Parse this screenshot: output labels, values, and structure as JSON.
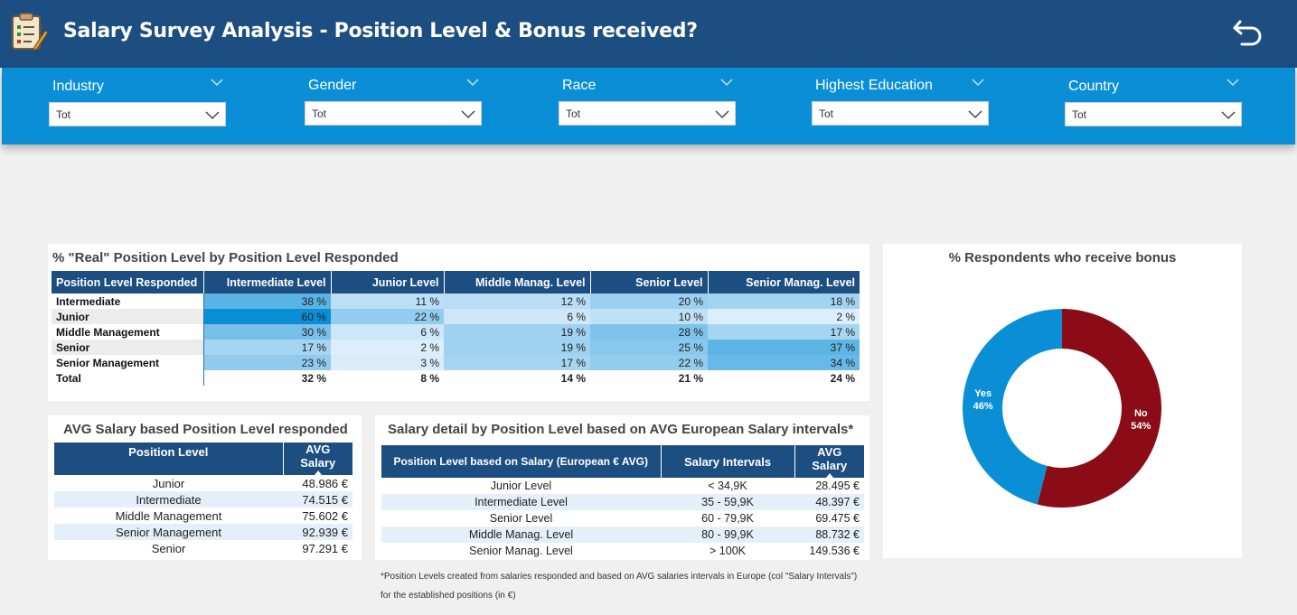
{
  "header": {
    "title": "Salary Survey Analysis - Position Level & Bonus received?",
    "logo_icon": "clipboard-pencil-icon",
    "back_icon": "undo-arrow-icon",
    "background": "#1d4e82"
  },
  "filters": [
    {
      "label": "Industry",
      "value": "Tot"
    },
    {
      "label": "Gender",
      "value": "Tot"
    },
    {
      "label": "Race",
      "value": "Tot"
    },
    {
      "label": "Highest Education",
      "value": "Tot"
    },
    {
      "label": "Country",
      "value": "Tot"
    }
  ],
  "matrix": {
    "title": "% \"Real\" Position Level by Position Level Responded",
    "row_header": "Position Level Responded",
    "columns": [
      "Intermediate Level",
      "Junior Level",
      "Middle Manag. Level",
      "Senior Level",
      "Senior Manag. Level"
    ],
    "rows": [
      {
        "label": "Intermediate",
        "values": [
          "38 %",
          "11 %",
          "12 %",
          "20 %",
          "18 %"
        ],
        "levels": [
          38,
          11,
          12,
          20,
          18
        ]
      },
      {
        "label": "Junior",
        "values": [
          "60 %",
          "22 %",
          "6 %",
          "10 %",
          "2 %"
        ],
        "levels": [
          60,
          22,
          6,
          10,
          2
        ]
      },
      {
        "label": "Middle Management",
        "values": [
          "30 %",
          "6 %",
          "19 %",
          "28 %",
          "17 %"
        ],
        "levels": [
          30,
          6,
          19,
          28,
          17
        ]
      },
      {
        "label": "Senior",
        "values": [
          "17 %",
          "2 %",
          "19 %",
          "25 %",
          "37 %"
        ],
        "levels": [
          17,
          2,
          19,
          25,
          37
        ]
      },
      {
        "label": "Senior Management",
        "values": [
          "23 %",
          "3 %",
          "17 %",
          "22 %",
          "34 %"
        ],
        "levels": [
          23,
          3,
          17,
          22,
          34
        ]
      }
    ],
    "total": {
      "label": "Total",
      "values": [
        "32 %",
        "8 %",
        "14 %",
        "21 %",
        "24 %"
      ]
    }
  },
  "avg_salary": {
    "title": "AVG Salary based Position Level responded",
    "col1": "Position Level",
    "col2": "AVG Salary",
    "rows": [
      {
        "level": "Junior",
        "salary": "48.986 €"
      },
      {
        "level": "Intermediate",
        "salary": "74.515 €"
      },
      {
        "level": "Middle Management",
        "salary": "75.602 €"
      },
      {
        "level": "Senior Management",
        "salary": "92.939 €"
      },
      {
        "level": "Senior",
        "salary": "97.291 €"
      }
    ]
  },
  "salary_detail": {
    "title": "Salary detail by Position Level based on AVG European Salary intervals*",
    "col1": "Position Level based on Salary (European € AVG)",
    "col2": "Salary Intervals",
    "col3": "AVG Salary",
    "rows": [
      {
        "level": "Junior Level",
        "interval": "< 34,9K",
        "salary": "28.495 €"
      },
      {
        "level": "Intermediate Level",
        "interval": "35 - 59,9K",
        "salary": "48.397 €"
      },
      {
        "level": "Senior Level",
        "interval": "60 - 79,9K",
        "salary": "69.475 €"
      },
      {
        "level": "Middle Manag. Level",
        "interval": "80 - 99,9K",
        "salary": "88.732 €"
      },
      {
        "level": "Senior Manag. Level",
        "interval": "> 100K",
        "salary": "149.536 €"
      }
    ]
  },
  "footnote": "*Position Levels created from salaries responded and based on AVG salaries intervals in Europe (col \"Salary Intervals\") for the established positions (in €)",
  "chart_data": {
    "type": "pie",
    "title": "% Respondents who receive bonus",
    "categories": [
      "No",
      "Yes"
    ],
    "values": [
      54,
      46
    ],
    "labels": [
      "No\n54%",
      "Yes\n46%"
    ],
    "colors": [
      "#8b0c16",
      "#0a8fd7"
    ],
    "donut": true
  }
}
